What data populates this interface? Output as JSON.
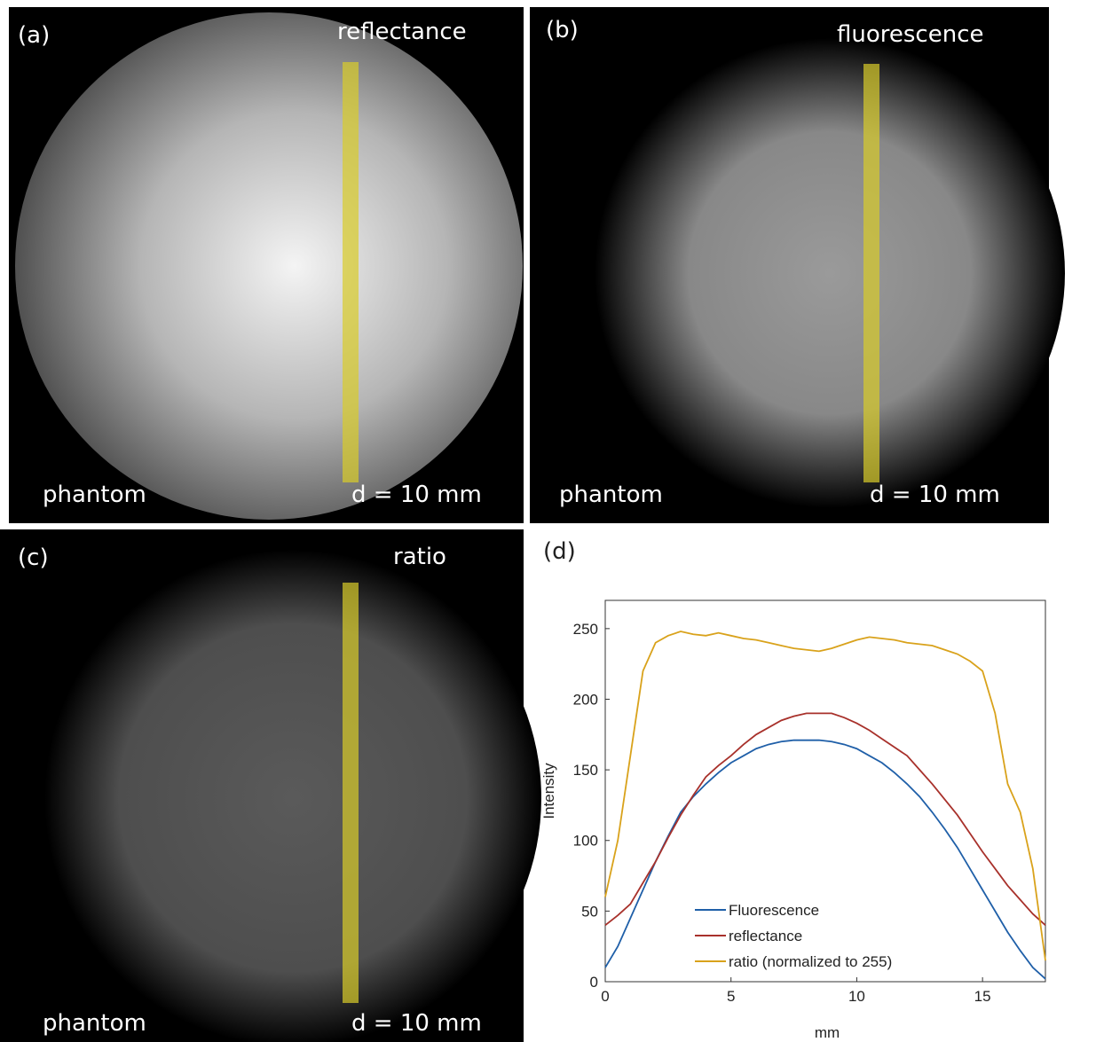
{
  "panels": [
    {
      "label": "(a)",
      "title": "reflectance",
      "sample": "phantom",
      "distance": "d = 10 mm"
    },
    {
      "label": "(b)",
      "title": "fluorescence",
      "sample": "phantom",
      "distance": "d = 10 mm"
    },
    {
      "label": "(c)",
      "title": "ratio",
      "sample": "phantom",
      "distance": "d = 10 mm"
    }
  ],
  "chart_label": "(d)",
  "chart_data": {
    "type": "line",
    "xlabel": "mm",
    "ylabel": "Intensity",
    "x": [
      0,
      0.5,
      1,
      1.5,
      2,
      2.5,
      3,
      3.5,
      4,
      4.5,
      5,
      5.5,
      6,
      6.5,
      7,
      7.5,
      8,
      8.5,
      9,
      9.5,
      10,
      10.5,
      11,
      11.5,
      12,
      12.5,
      13,
      13.5,
      14,
      14.5,
      15,
      15.5,
      16,
      16.5,
      17,
      17.5
    ],
    "series": [
      {
        "name": "Fluorescence",
        "color": "#1f5fa8",
        "values": [
          10,
          25,
          45,
          65,
          85,
          103,
          120,
          131,
          140,
          148,
          155,
          160,
          165,
          168,
          170,
          171,
          171,
          171,
          170,
          168,
          165,
          160,
          155,
          148,
          140,
          131,
          120,
          108,
          95,
          80,
          65,
          50,
          35,
          22,
          10,
          2
        ]
      },
      {
        "name": "reflectance",
        "color": "#a8312b",
        "values": [
          40,
          47,
          55,
          70,
          85,
          102,
          118,
          132,
          145,
          153,
          160,
          168,
          175,
          180,
          185,
          188,
          190,
          190,
          190,
          187,
          183,
          178,
          172,
          166,
          160,
          150,
          140,
          129,
          118,
          105,
          92,
          80,
          68,
          58,
          48,
          40
        ]
      },
      {
        "name": "ratio (normalized to 255)",
        "color": "#d9a21b",
        "values": [
          60,
          100,
          160,
          220,
          240,
          245,
          248,
          246,
          245,
          247,
          245,
          243,
          242,
          240,
          238,
          236,
          235,
          234,
          236,
          239,
          242,
          244,
          243,
          242,
          240,
          239,
          238,
          235,
          232,
          227,
          220,
          190,
          140,
          120,
          80,
          15
        ]
      }
    ],
    "xlim": [
      0,
      17.5
    ],
    "ylim": [
      0,
      270
    ],
    "xticks": [
      0,
      5,
      10,
      15
    ],
    "yticks": [
      0,
      50,
      100,
      150,
      200,
      250
    ]
  }
}
